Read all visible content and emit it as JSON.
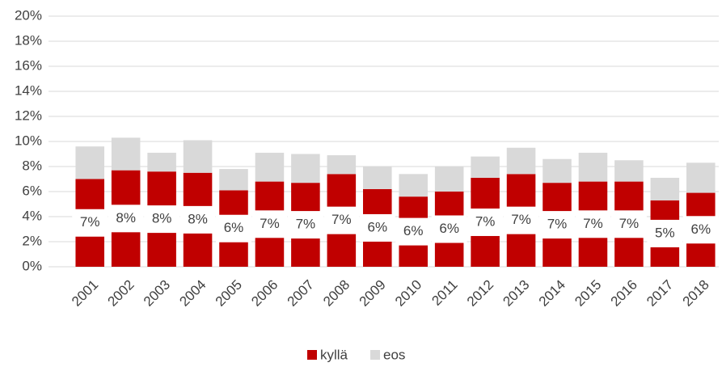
{
  "chart_data": {
    "type": "bar",
    "stacked": true,
    "categories": [
      "2001",
      "2002",
      "2003",
      "2004",
      "2005",
      "2006",
      "2007",
      "2008",
      "2009",
      "2010",
      "2011",
      "2012",
      "2013",
      "2014",
      "2015",
      "2016",
      "2017",
      "2018"
    ],
    "series": [
      {
        "name": "kyllä",
        "color": "#c00000",
        "values": [
          7.0,
          7.7,
          7.6,
          7.5,
          6.1,
          6.8,
          6.7,
          7.4,
          6.2,
          5.6,
          6.0,
          7.1,
          7.4,
          6.7,
          6.8,
          6.8,
          5.3,
          5.9
        ],
        "value_labels": [
          "7%",
          "8%",
          "8%",
          "8%",
          "6%",
          "7%",
          "7%",
          "7%",
          "6%",
          "6%",
          "6%",
          "7%",
          "7%",
          "7%",
          "7%",
          "7%",
          "5%",
          "6%"
        ]
      },
      {
        "name": "eos",
        "color": "#d9d9d9",
        "values": [
          2.6,
          2.6,
          1.5,
          2.6,
          1.7,
          2.3,
          2.3,
          1.5,
          1.8,
          1.8,
          2.0,
          1.7,
          2.1,
          1.9,
          2.3,
          1.7,
          1.8,
          2.4
        ]
      }
    ],
    "ylim": [
      0,
      20
    ],
    "yticks": [
      {
        "value": 0,
        "label": "0%"
      },
      {
        "value": 2,
        "label": "2%"
      },
      {
        "value": 4,
        "label": "4%"
      },
      {
        "value": 6,
        "label": "6%"
      },
      {
        "value": 8,
        "label": "8%"
      },
      {
        "value": 10,
        "label": "10%"
      },
      {
        "value": 12,
        "label": "12%"
      },
      {
        "value": 14,
        "label": "14%"
      },
      {
        "value": 16,
        "label": "16%"
      },
      {
        "value": 18,
        "label": "18%"
      },
      {
        "value": 20,
        "label": "20%"
      }
    ],
    "grid": true,
    "legend": "bottom"
  }
}
